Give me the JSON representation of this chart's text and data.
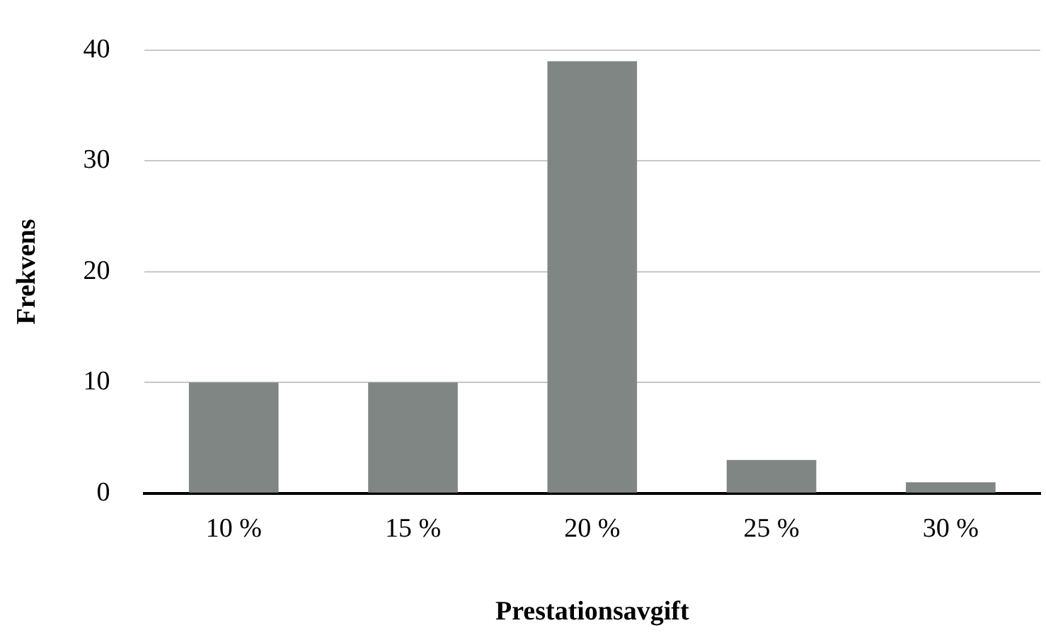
{
  "chart_data": {
    "type": "bar",
    "xlabel": "Prestationsavgift",
    "ylabel": "Frekvens",
    "categories": [
      "10 %",
      "15 %",
      "20 %",
      "25 %",
      "30 %"
    ],
    "values": [
      10,
      10,
      39,
      3,
      1
    ],
    "color": "#808683",
    "ylim": [
      0,
      40
    ],
    "yticks": [
      0,
      10,
      20,
      30,
      40
    ],
    "grid": "y"
  }
}
